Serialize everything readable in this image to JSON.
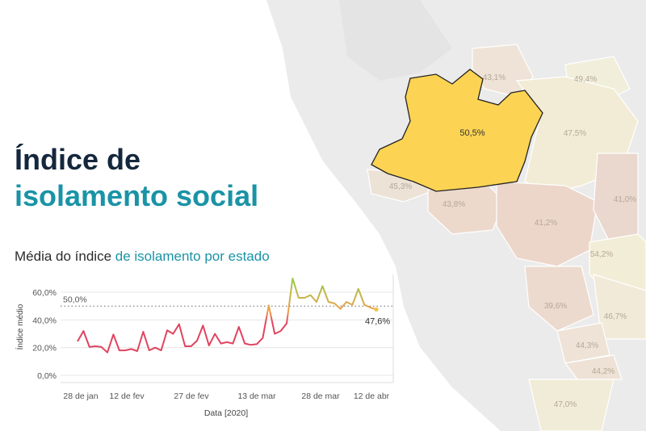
{
  "title": {
    "line1": "Índice de",
    "line2": "isolamento social"
  },
  "subtitle": {
    "part1": "Média do índice ",
    "part2": "de isolamento por estado"
  },
  "map": {
    "highlight_color": "#fcd353",
    "highlight_label": "50,5%",
    "state_labels": [
      "43,1%",
      "49,4%",
      "47,5%",
      "45,3%",
      "43,8%",
      "41,2%",
      "41,0%",
      "54,2%",
      "39,6%",
      "46,7%",
      "44,3%",
      "44,2%",
      "47,0%"
    ]
  },
  "chart_data": {
    "type": "line",
    "xlabel": "Data [2020]",
    "ylabel": "Índice médio",
    "ylim": [
      0,
      70
    ],
    "ytick_labels": [
      "0,0%",
      "20,0%",
      "40,0%",
      "60,0%"
    ],
    "ytick_values": [
      0,
      20,
      40,
      60
    ],
    "xtick_labels": [
      "28 de jan",
      "12 de fev",
      "27 de fev",
      "13 de mar",
      "28 de mar",
      "12 de abr"
    ],
    "reference_line": {
      "value": 50,
      "label": "50,0%"
    },
    "last_value_label": "47,6%",
    "colors": {
      "low": "#e0445f",
      "mid": "#f0a04a",
      "high": "#97cc4a",
      "end": "#f2c24c",
      "grid": "#e6e6e6"
    },
    "series": [
      {
        "values": [
          24.5,
          32,
          20.5,
          21,
          20.5,
          16.5,
          29.5,
          18,
          18,
          19,
          17.5,
          31.5,
          18,
          20,
          18,
          32.5,
          30,
          37,
          21,
          21,
          25,
          36,
          21.5,
          30,
          23,
          24,
          23,
          35,
          23,
          22,
          22.5,
          27,
          50.5,
          30,
          32,
          37.5,
          70,
          56,
          56,
          58,
          53,
          64.5,
          53,
          52,
          48,
          53,
          51,
          62.5,
          51,
          49,
          47.6
        ]
      }
    ]
  }
}
